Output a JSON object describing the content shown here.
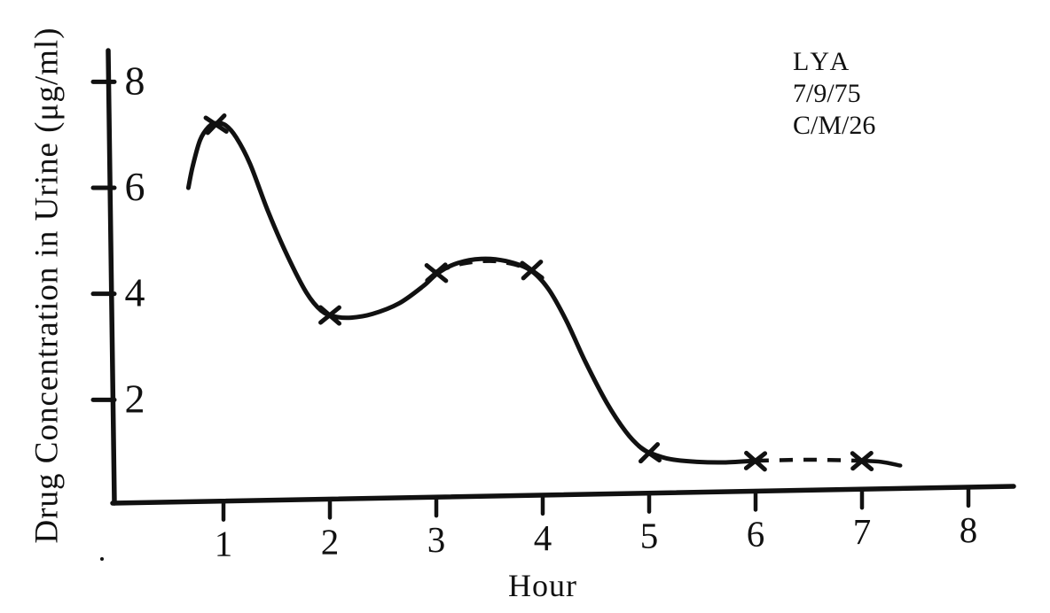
{
  "colors": {
    "ink": "#111111",
    "background": "#ffffff"
  },
  "annotation": {
    "lines": [
      "LYA",
      "7/9/75",
      "C/M/26"
    ]
  },
  "chart_data": {
    "type": "line",
    "title": "",
    "xlabel": "Hour",
    "ylabel": "Drug Concentration in Urine (μg/ml)",
    "x_ticks": [
      1,
      2,
      3,
      4,
      5,
      6,
      7,
      8
    ],
    "y_ticks": [
      2,
      4,
      6,
      8
    ],
    "xlim": [
      0,
      8.6
    ],
    "ylim": [
      0,
      8.6
    ],
    "grid": false,
    "legend_position": "none",
    "annotation_lines": [
      "LYA",
      "7/9/75",
      "C/M/26"
    ],
    "series": [
      {
        "name": "drug concentration in urine",
        "marker": "x",
        "line_style": "solid with dashed interpolated segments",
        "points": [
          [
            0.93,
            7.2
          ],
          [
            2.0,
            3.6
          ],
          [
            3.0,
            4.4
          ],
          [
            3.9,
            4.45
          ],
          [
            5.0,
            1.0
          ],
          [
            6.0,
            0.85
          ],
          [
            7.0,
            0.85
          ]
        ],
        "solid_curve": [
          [
            0.67,
            6.0
          ],
          [
            0.71,
            6.4
          ],
          [
            0.78,
            6.9
          ],
          [
            0.86,
            7.15
          ],
          [
            0.93,
            7.22
          ],
          [
            1.02,
            7.18
          ],
          [
            1.12,
            6.95
          ],
          [
            1.25,
            6.45
          ],
          [
            1.42,
            5.55
          ],
          [
            1.6,
            4.72
          ],
          [
            1.78,
            4.02
          ],
          [
            1.92,
            3.68
          ],
          [
            2.05,
            3.57
          ],
          [
            2.2,
            3.55
          ],
          [
            2.4,
            3.62
          ],
          [
            2.65,
            3.82
          ],
          [
            2.88,
            4.15
          ],
          [
            3.02,
            4.4
          ],
          [
            3.2,
            4.58
          ],
          [
            3.42,
            4.66
          ],
          [
            3.65,
            4.62
          ],
          [
            3.88,
            4.45
          ],
          [
            4.05,
            4.1
          ],
          [
            4.22,
            3.5
          ],
          [
            4.4,
            2.72
          ],
          [
            4.6,
            1.95
          ],
          [
            4.78,
            1.4
          ],
          [
            4.92,
            1.1
          ],
          [
            5.02,
            0.99
          ],
          [
            5.2,
            0.88
          ],
          [
            5.45,
            0.83
          ],
          [
            5.72,
            0.82
          ],
          [
            6.0,
            0.85
          ]
        ],
        "tail_curve": [
          [
            7.0,
            0.85
          ],
          [
            7.18,
            0.83
          ],
          [
            7.36,
            0.76
          ]
        ],
        "dashed_segments": [
          [
            [
              3.0,
              4.42
            ],
            [
              3.25,
              4.57
            ],
            [
              3.5,
              4.62
            ],
            [
              3.7,
              4.57
            ],
            [
              3.9,
              4.45
            ]
          ],
          [
            [
              6.0,
              0.85
            ],
            [
              6.5,
              0.87
            ],
            [
              7.0,
              0.85
            ]
          ]
        ]
      }
    ]
  }
}
